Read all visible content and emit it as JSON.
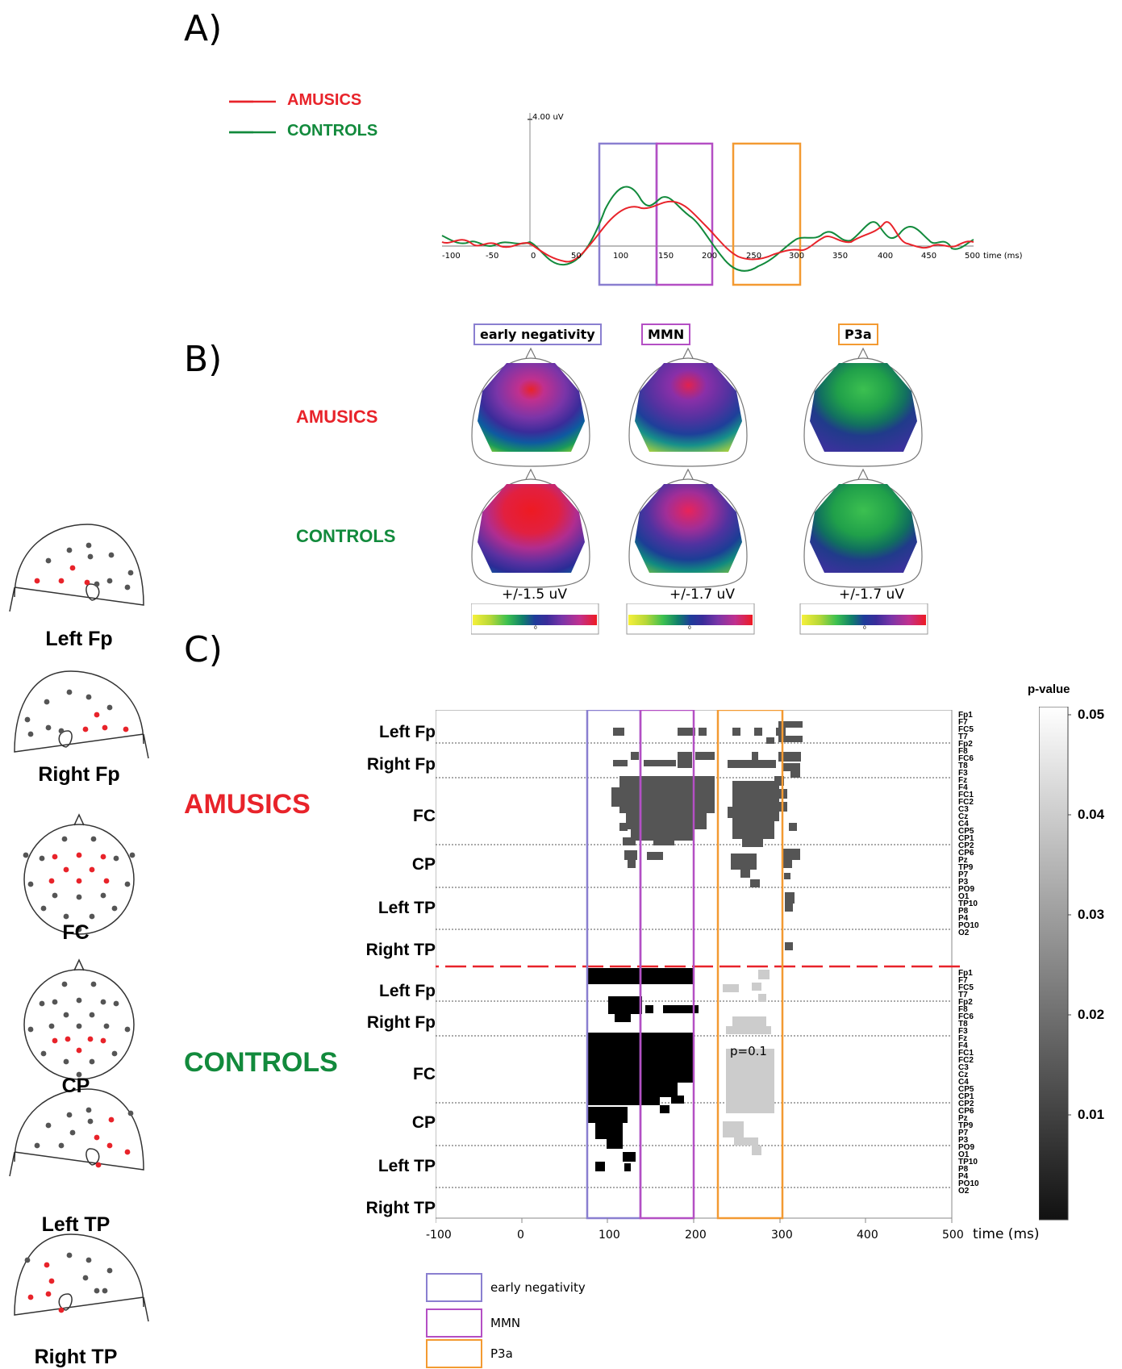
{
  "panels": {
    "a": "A)",
    "b": "B)",
    "c": "C)"
  },
  "groups": {
    "amusics": "AMUSICS",
    "controls": "CONTROLS"
  },
  "colors": {
    "amusics": "#e8232a",
    "controls": "#128a3c",
    "early_negativity": "#8a7fd0",
    "mmn": "#b44fc4",
    "p3a": "#f39a32"
  },
  "panel_a": {
    "legend": [
      "AMUSICS",
      "CONTROLS"
    ],
    "amp_label": "4.00 uV",
    "x_axis_unit": "time (ms)",
    "x_ticks": [
      "-100",
      "-50",
      "0",
      "50",
      "100",
      "150",
      "200",
      "250",
      "300",
      "350",
      "400",
      "450",
      "500"
    ]
  },
  "panel_b": {
    "component_labels": [
      "early negativity",
      "MMN",
      "P3a"
    ],
    "scales": [
      "+/-1.5 uV",
      "+/-1.7 uV",
      "+/-1.7 uV"
    ],
    "colorbar_ticks": [
      "-",
      "0",
      "+"
    ]
  },
  "panel_c": {
    "y_labels": [
      "Left Fp",
      "Right Fp",
      "FC",
      "CP",
      "Left TP",
      "Right TP"
    ],
    "x_ticks": [
      "-100",
      "0",
      "100",
      "200",
      "300",
      "400",
      "500"
    ],
    "x_unit": "time (ms)",
    "p_label": "p=0.1",
    "colorbar_title": "p-value",
    "colorbar_ticks": [
      "0.05",
      "0.04",
      "0.03",
      "0.02",
      "0.01"
    ],
    "electrode_groups": [
      [
        "Fp1",
        "F7",
        "FC5",
        "T7"
      ],
      [
        "Fp2",
        "F8",
        "FC6",
        "T8"
      ],
      [
        "F3",
        "Fz",
        "F4",
        "FC1",
        "FC2",
        "C3",
        "Cz",
        "C4"
      ],
      [
        "CP5",
        "CP1",
        "CP2",
        "CP6",
        "Pz"
      ],
      [
        "TP9",
        "P7",
        "P3",
        "PO9",
        "O1"
      ],
      [
        "TP10",
        "P8",
        "P4",
        "PO10",
        "O2"
      ]
    ],
    "legend": [
      "early negativity",
      "MMN",
      "P3a"
    ]
  },
  "head_diagrams": [
    "Left Fp",
    "Right Fp",
    "FC",
    "CP",
    "Left TP",
    "Right TP"
  ]
}
